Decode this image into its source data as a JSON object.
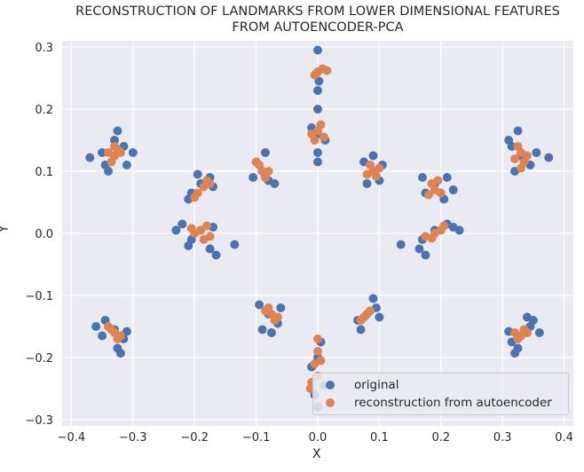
{
  "chart_data": {
    "type": "scatter",
    "title_lines": [
      "RECONSTRUCTION OF LANDMARKS FROM LOWER DIMENSIONAL FEATURES",
      "FROM AUTOENCODER-PCA"
    ],
    "xlabel": "X",
    "ylabel": "Y",
    "xlim": [
      -0.415,
      0.415
    ],
    "ylim": [
      -0.31,
      0.31
    ],
    "xticks": [
      -0.4,
      -0.3,
      -0.2,
      -0.1,
      0.0,
      0.1,
      0.2,
      0.3,
      0.4
    ],
    "xtick_labels": [
      "−0.4",
      "−0.3",
      "−0.2",
      "−0.1",
      "0.0",
      "0.1",
      "0.2",
      "0.3",
      "0.4"
    ],
    "yticks": [
      -0.3,
      -0.2,
      -0.1,
      0.0,
      0.1,
      0.2,
      0.3
    ],
    "ytick_labels": [
      "−0.3",
      "−0.2",
      "−0.1",
      "0.0",
      "0.1",
      "0.2",
      "0.3"
    ],
    "grid": true,
    "legend_position": "lower-right",
    "background_color": "#EAEAF2",
    "series": [
      {
        "name": "original",
        "color": "#4C72B0",
        "points": [
          [
            -0.33,
            0.125
          ],
          [
            -0.345,
            0.11
          ],
          [
            -0.315,
            0.14
          ],
          [
            -0.33,
            0.15
          ],
          [
            -0.35,
            0.13
          ],
          [
            -0.31,
            0.11
          ],
          [
            -0.37,
            0.122
          ],
          [
            -0.325,
            0.165
          ],
          [
            -0.34,
            0.1
          ],
          [
            -0.3,
            0.13
          ],
          [
            -0.19,
            0.08
          ],
          [
            -0.205,
            0.065
          ],
          [
            -0.175,
            0.09
          ],
          [
            -0.21,
            0.055
          ],
          [
            -0.17,
            0.075
          ],
          [
            -0.195,
            0.095
          ],
          [
            -0.19,
            0.005
          ],
          [
            -0.205,
            -0.01
          ],
          [
            -0.17,
            0.01
          ],
          [
            -0.22,
            0.015
          ],
          [
            -0.175,
            -0.025
          ],
          [
            -0.135,
            -0.018
          ],
          [
            -0.23,
            0.005
          ],
          [
            -0.165,
            -0.035
          ],
          [
            -0.21,
            -0.02
          ],
          [
            -0.09,
            0.1
          ],
          [
            -0.1,
            0.115
          ],
          [
            -0.08,
            0.085
          ],
          [
            -0.085,
            0.13
          ],
          [
            -0.105,
            0.09
          ],
          [
            -0.07,
            0.08
          ],
          [
            -0.08,
            -0.13
          ],
          [
            -0.095,
            -0.115
          ],
          [
            -0.065,
            -0.145
          ],
          [
            -0.09,
            -0.155
          ],
          [
            -0.06,
            -0.12
          ],
          [
            -0.075,
            -0.16
          ],
          [
            0.0,
            0.16
          ],
          [
            0.0,
            0.2
          ],
          [
            0.0,
            0.23
          ],
          [
            0.0,
            0.26
          ],
          [
            0.0,
            0.295
          ],
          [
            0.0,
            0.13
          ],
          [
            0.0,
            0.115
          ],
          [
            0.002,
            0.245
          ],
          [
            -0.01,
            0.17
          ],
          [
            0.012,
            0.15
          ],
          [
            0.0,
            -0.2
          ],
          [
            0.0,
            -0.23
          ],
          [
            -0.005,
            -0.26
          ],
          [
            0.005,
            -0.175
          ],
          [
            -0.01,
            -0.215
          ],
          [
            0.01,
            -0.245
          ],
          [
            0.0,
            -0.28
          ],
          [
            0.09,
            0.1
          ],
          [
            0.075,
            0.115
          ],
          [
            0.1,
            0.085
          ],
          [
            0.08,
            0.08
          ],
          [
            0.105,
            0.11
          ],
          [
            0.09,
            0.125
          ],
          [
            0.08,
            -0.13
          ],
          [
            0.065,
            -0.14
          ],
          [
            0.095,
            -0.12
          ],
          [
            0.07,
            -0.155
          ],
          [
            0.09,
            -0.105
          ],
          [
            0.1,
            -0.135
          ],
          [
            0.19,
            0.08
          ],
          [
            0.175,
            0.065
          ],
          [
            0.21,
            0.09
          ],
          [
            0.17,
            0.09
          ],
          [
            0.205,
            0.055
          ],
          [
            0.22,
            0.07
          ],
          [
            0.19,
            0.005
          ],
          [
            0.17,
            -0.01
          ],
          [
            0.21,
            0.015
          ],
          [
            0.165,
            -0.025
          ],
          [
            0.22,
            0.01
          ],
          [
            0.135,
            -0.018
          ],
          [
            0.23,
            0.005
          ],
          [
            0.175,
            -0.035
          ],
          [
            0.33,
            0.125
          ],
          [
            0.315,
            0.14
          ],
          [
            0.345,
            0.11
          ],
          [
            0.31,
            0.15
          ],
          [
            0.355,
            0.13
          ],
          [
            0.32,
            0.1
          ],
          [
            0.375,
            0.122
          ],
          [
            0.325,
            0.165
          ],
          [
            -0.33,
            -0.155
          ],
          [
            -0.345,
            -0.14
          ],
          [
            -0.315,
            -0.17
          ],
          [
            -0.35,
            -0.165
          ],
          [
            -0.325,
            -0.185
          ],
          [
            -0.31,
            -0.158
          ],
          [
            -0.36,
            -0.15
          ],
          [
            -0.32,
            -0.193
          ],
          [
            0.33,
            -0.165
          ],
          [
            0.345,
            -0.15
          ],
          [
            0.315,
            -0.175
          ],
          [
            0.35,
            -0.14
          ],
          [
            0.325,
            -0.185
          ],
          [
            0.31,
            -0.158
          ],
          [
            0.36,
            -0.16
          ],
          [
            0.34,
            -0.135
          ],
          [
            0.32,
            -0.193
          ]
        ]
      },
      {
        "name": "reconstruction from autoencoder",
        "color": "#DD8452",
        "points": [
          [
            -0.33,
            0.125
          ],
          [
            -0.325,
            0.135
          ],
          [
            -0.335,
            0.115
          ],
          [
            -0.32,
            0.13
          ],
          [
            -0.34,
            0.13
          ],
          [
            -0.33,
            0.14
          ],
          [
            -0.185,
            0.075
          ],
          [
            -0.195,
            0.065
          ],
          [
            -0.18,
            0.085
          ],
          [
            -0.2,
            0.058
          ],
          [
            -0.175,
            0.08
          ],
          [
            -0.19,
            0.005
          ],
          [
            -0.2,
            0.0
          ],
          [
            -0.18,
            0.012
          ],
          [
            -0.175,
            -0.005
          ],
          [
            -0.205,
            0.008
          ],
          [
            -0.185,
            -0.01
          ],
          [
            -0.09,
            0.1
          ],
          [
            -0.095,
            0.11
          ],
          [
            -0.085,
            0.09
          ],
          [
            -0.08,
            0.1
          ],
          [
            -0.1,
            0.115
          ],
          [
            -0.075,
            -0.13
          ],
          [
            -0.085,
            -0.125
          ],
          [
            -0.07,
            -0.14
          ],
          [
            -0.08,
            -0.12
          ],
          [
            -0.065,
            -0.135
          ],
          [
            0.0,
            0.26
          ],
          [
            -0.005,
            0.255
          ],
          [
            0.008,
            0.265
          ],
          [
            0.015,
            0.262
          ],
          [
            0.0,
            0.165
          ],
          [
            -0.01,
            0.16
          ],
          [
            0.01,
            0.155
          ],
          [
            0.005,
            0.175
          ],
          [
            -0.005,
            0.15
          ],
          [
            0.0,
            -0.19
          ],
          [
            -0.005,
            -0.21
          ],
          [
            0.0,
            -0.23
          ],
          [
            -0.01,
            -0.24
          ],
          [
            0.005,
            -0.205
          ],
          [
            0.0,
            -0.17
          ],
          [
            -0.012,
            -0.25
          ],
          [
            0.09,
            0.1
          ],
          [
            0.085,
            0.11
          ],
          [
            0.095,
            0.092
          ],
          [
            0.08,
            0.095
          ],
          [
            0.1,
            0.105
          ],
          [
            0.075,
            -0.135
          ],
          [
            0.085,
            -0.125
          ],
          [
            0.07,
            -0.14
          ],
          [
            0.08,
            -0.13
          ],
          [
            0.19,
            0.07
          ],
          [
            0.185,
            0.08
          ],
          [
            0.2,
            0.065
          ],
          [
            0.195,
            0.085
          ],
          [
            0.18,
            0.062
          ],
          [
            0.19,
            0.0
          ],
          [
            0.2,
            0.005
          ],
          [
            0.185,
            -0.008
          ],
          [
            0.205,
            0.012
          ],
          [
            0.175,
            -0.005
          ],
          [
            0.33,
            0.13
          ],
          [
            0.325,
            0.14
          ],
          [
            0.335,
            0.115
          ],
          [
            0.32,
            0.12
          ],
          [
            0.34,
            0.125
          ],
          [
            0.33,
            0.105
          ],
          [
            -0.33,
            -0.16
          ],
          [
            -0.325,
            -0.17
          ],
          [
            -0.335,
            -0.155
          ],
          [
            -0.32,
            -0.165
          ],
          [
            -0.34,
            -0.15
          ],
          [
            0.33,
            -0.165
          ],
          [
            0.34,
            -0.16
          ],
          [
            0.325,
            -0.17
          ],
          [
            0.335,
            -0.155
          ],
          [
            0.32,
            -0.16
          ]
        ]
      }
    ]
  }
}
